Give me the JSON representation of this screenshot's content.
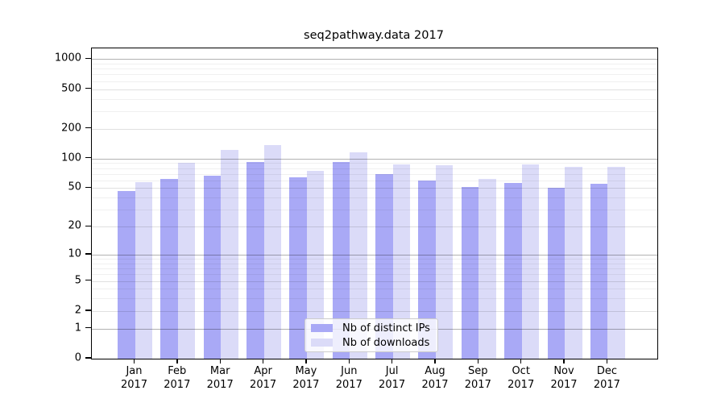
{
  "chart_data": {
    "type": "bar",
    "title": "seq2pathway.data 2017",
    "scale": "log1p",
    "categories": [
      "Jan",
      "Feb",
      "Mar",
      "Apr",
      "May",
      "Jun",
      "Jul",
      "Aug",
      "Sep",
      "Oct",
      "Nov",
      "Dec"
    ],
    "year": "2017",
    "series": [
      {
        "name": "Nb of distinct IPs",
        "color": "#a9a9f6",
        "values": [
          47,
          62,
          67,
          93,
          65,
          93,
          70,
          60,
          51,
          57,
          50,
          56
        ]
      },
      {
        "name": "Nb of downloads",
        "color": "#dbdbf8",
        "values": [
          58,
          90,
          122,
          136,
          75,
          115,
          88,
          86,
          62,
          88,
          82,
          83
        ]
      }
    ],
    "y_ticks": [
      0,
      1,
      2,
      5,
      10,
      20,
      50,
      100,
      200,
      500,
      1000
    ],
    "y_minor_gridlines": [
      3,
      4,
      6,
      7,
      8,
      9,
      30,
      40,
      60,
      70,
      80,
      90,
      300,
      400,
      600,
      700,
      800,
      900
    ],
    "ylim": [
      0,
      1280
    ],
    "xlabel": "",
    "ylabel": "",
    "grid": true,
    "legend_position": "bottom-center"
  },
  "colors": {
    "distinct_ips_bar": "#a9a9f6",
    "downloads_bar": "#dbdbf8",
    "grid_major": "#b3b3b3",
    "grid_mid": "#e1e1e1",
    "grid_minor": "#f0f0f0",
    "axis": "#000000",
    "legend_border": "#cccccc",
    "background": "#ffffff"
  }
}
